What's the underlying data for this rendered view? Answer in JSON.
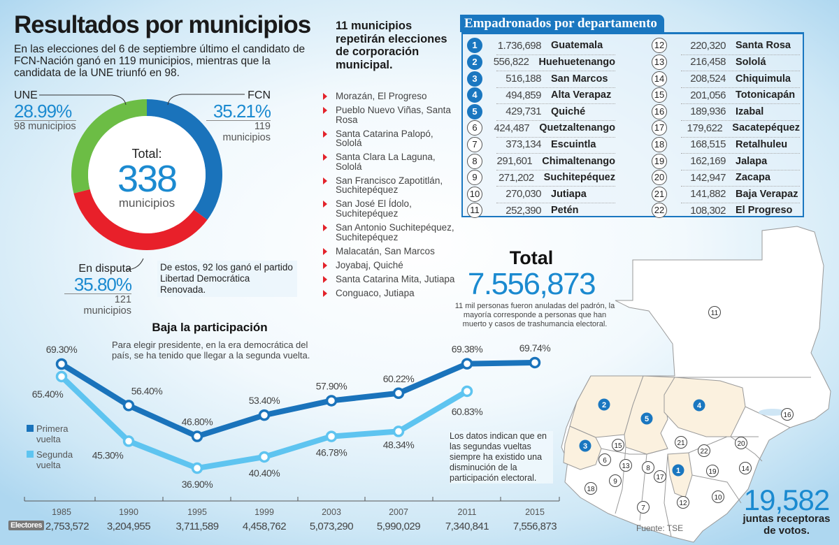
{
  "header": {
    "title": "Resultados por municipios",
    "intro": "En las elecciones del 6 de septiembre último el candidato de FCN-Nación ganó en 119 municipios, mientras que la candidata de la UNE triunfó en 98."
  },
  "donut": {
    "total_label": "Total:",
    "total_value": "338",
    "total_unit": "municipios",
    "une": {
      "label": "UNE",
      "pct": "28.99%",
      "mun": "98 municipios"
    },
    "fcn": {
      "label": "FCN",
      "pct": "35.21%",
      "mun": "119 municipios"
    },
    "disputa": {
      "label": "En disputa",
      "pct": "35.80%",
      "mun": "121 municipios"
    },
    "note": "De estos, 92 los ganó el partido Libertad Democrática Renovada."
  },
  "repeat": {
    "title": "11 municipios repetirán elecciones de corporación municipal.",
    "items": [
      "Morazán, El Progreso",
      "Pueblo Nuevo Viñas, Santa Rosa",
      "Santa Catarina Palopó, Sololá",
      "Santa Clara La Laguna, Sololá",
      "San Francisco Zapotitlán, Suchitepéquez",
      "San José El Ídolo, Suchitepéquez",
      "San Antonio Suchitepéquez, Suchitepéquez",
      "Malacatán, San Marcos",
      "Joyabaj, Quiché",
      "Santa Catarina Mita, Jutiapa",
      "Conguaco, Jutiapa"
    ]
  },
  "table": {
    "title": "Empadronados por departamento",
    "rows": [
      {
        "n": "1",
        "value": "1.736,698",
        "name": "Guatemala"
      },
      {
        "n": "2",
        "value": "556,822",
        "name": "Huehuetenango"
      },
      {
        "n": "3",
        "value": "516,188",
        "name": "San Marcos"
      },
      {
        "n": "4",
        "value": "494,859",
        "name": "Alta Verapaz"
      },
      {
        "n": "5",
        "value": "429,731",
        "name": "Quiché"
      },
      {
        "n": "6",
        "value": "424,487",
        "name": "Quetzaltenango"
      },
      {
        "n": "7",
        "value": "373,134",
        "name": "Escuintla"
      },
      {
        "n": "8",
        "value": "291,601",
        "name": "Chimaltenango"
      },
      {
        "n": "9",
        "value": "271,202",
        "name": "Suchitepéquez"
      },
      {
        "n": "10",
        "value": "270,030",
        "name": "Jutiapa"
      },
      {
        "n": "11",
        "value": "252,390",
        "name": "Petén"
      },
      {
        "n": "12",
        "value": "220,320",
        "name": "Santa Rosa"
      },
      {
        "n": "13",
        "value": "216,458",
        "name": "Sololá"
      },
      {
        "n": "14",
        "value": "208,524",
        "name": "Chiquimula"
      },
      {
        "n": "15",
        "value": "201,056",
        "name": "Totonicapán"
      },
      {
        "n": "16",
        "value": "189,936",
        "name": "Izabal"
      },
      {
        "n": "17",
        "value": "179,622",
        "name": "Sacatepéquez"
      },
      {
        "n": "18",
        "value": "168,515",
        "name": "Retalhuleu"
      },
      {
        "n": "19",
        "value": "162,169",
        "name": "Jalapa"
      },
      {
        "n": "20",
        "value": "142,947",
        "name": "Zacapa"
      },
      {
        "n": "21",
        "value": "141,882",
        "name": "Baja Verapaz"
      },
      {
        "n": "22",
        "value": "108,302",
        "name": "El Progreso"
      }
    ]
  },
  "total": {
    "label": "Total",
    "value": "7.556,873",
    "note": "11 mil personas fueron anuladas del padrón, la mayoría corresponde a personas que han muerto y casos de trashumancia electoral."
  },
  "juntas": {
    "value": "19,582",
    "label": "juntas receptoras de votos."
  },
  "source": "Fuente: TSE",
  "colors": {
    "fcn": "#1a73bb",
    "une": "#6cbd45",
    "disputa": "#e8202a",
    "primera": "#1a73bb",
    "segunda": "#5ec4f0",
    "highlight_dept": "#fbf1df"
  },
  "chart_data": [
    {
      "type": "pie",
      "donut": true,
      "categories": [
        "FCN",
        "En disputa",
        "UNE"
      ],
      "values": [
        35.21,
        35.8,
        28.99
      ],
      "counts": [
        119,
        121,
        98
      ]
    },
    {
      "type": "line",
      "title": "Baja la participación",
      "subtitle": "Para elegir presidente, en la era democrática del país, se ha tenido que llegar a la segunda vuelta.",
      "categories": [
        "1985",
        "1990",
        "1995",
        "1999",
        "2003",
        "2007",
        "2011",
        "2015"
      ],
      "series": [
        {
          "name": "Primera vuelta",
          "values": [
            69.3,
            56.4,
            46.8,
            53.4,
            57.9,
            60.22,
            69.38,
            69.74
          ],
          "labels": [
            "69.30%",
            "56.40%",
            "46.80%",
            "53.40%",
            "57.90%",
            "60.22%",
            "69.38%",
            "69.74%"
          ]
        },
        {
          "name": "Segunda vuelta",
          "values": [
            65.4,
            45.3,
            36.9,
            40.4,
            46.78,
            48.34,
            60.83,
            null
          ],
          "labels": [
            "65.40%",
            "45.30%",
            "36.90%",
            "40.40%",
            "46.78%",
            "48.34%",
            "60.83%",
            ""
          ]
        }
      ],
      "electores_label": "Electores",
      "electores": [
        "2,753,572",
        "3,204,955",
        "3,711,589",
        "4,458,762",
        "5,073,290",
        "5,990,029",
        "7,340,841",
        "7,556,873"
      ],
      "note": "Los datos indican que en las segundas vueltas siempre ha existido una disminución de la participación electoral.",
      "legend": "left",
      "grid": false
    }
  ]
}
